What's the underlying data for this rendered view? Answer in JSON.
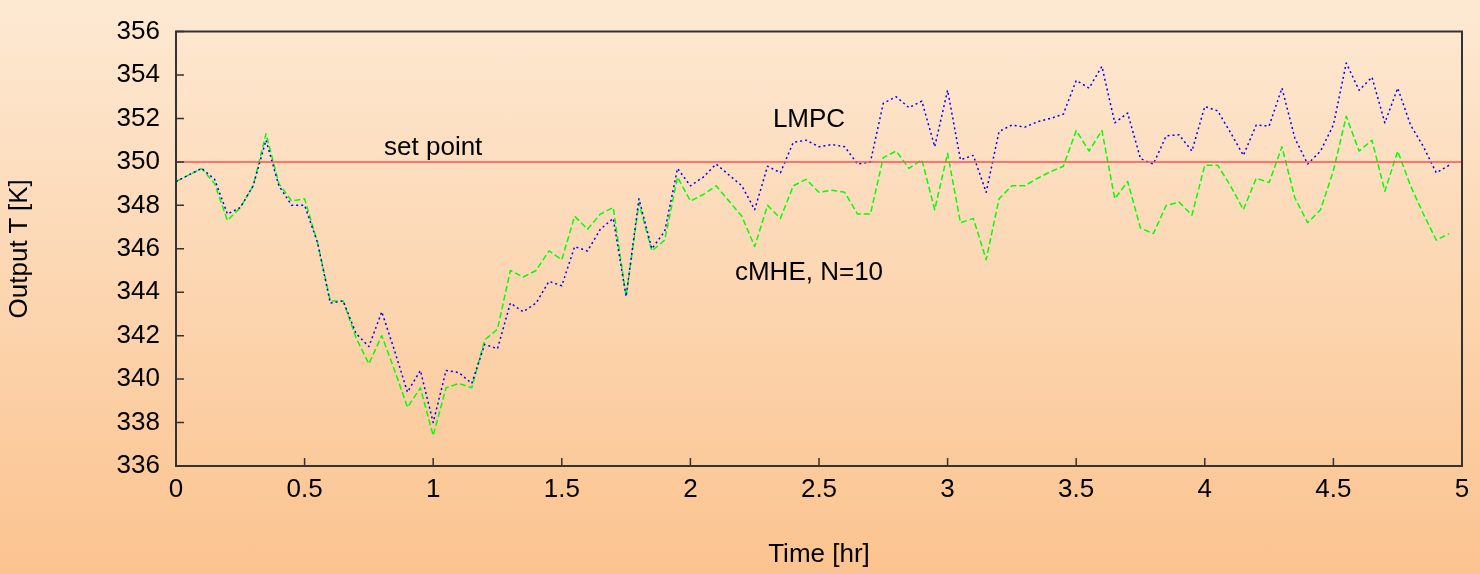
{
  "chart_data": {
    "type": "line",
    "xlabel": "Time [hr]",
    "ylabel": "Output T [K]",
    "x": [
      0,
      0.05,
      0.1,
      0.15,
      0.2,
      0.25,
      0.3,
      0.35,
      0.4,
      0.45,
      0.5,
      0.55,
      0.6,
      0.65,
      0.7,
      0.75,
      0.8,
      0.85,
      0.9,
      0.95,
      1,
      1.05,
      1.1,
      1.15,
      1.2,
      1.25,
      1.3,
      1.35,
      1.4,
      1.45,
      1.5,
      1.55,
      1.6,
      1.65,
      1.7,
      1.75,
      1.8,
      1.85,
      1.9,
      1.95,
      2,
      2.05,
      2.1,
      2.15,
      2.2,
      2.25,
      2.3,
      2.35,
      2.4,
      2.45,
      2.5,
      2.55,
      2.6,
      2.65,
      2.7,
      2.75,
      2.8,
      2.85,
      2.9,
      2.95,
      3,
      3.05,
      3.1,
      3.15,
      3.2,
      3.25,
      3.3,
      3.35,
      3.4,
      3.45,
      3.5,
      3.55,
      3.6,
      3.65,
      3.7,
      3.75,
      3.8,
      3.85,
      3.9,
      3.95,
      4,
      4.05,
      4.1,
      4.15,
      4.2,
      4.25,
      4.3,
      4.35,
      4.4,
      4.45,
      4.5,
      4.55,
      4.6,
      4.65,
      4.7,
      4.75,
      4.8,
      4.85,
      4.9,
      4.95
    ],
    "series": [
      {
        "name": "LMPC",
        "color": "#0000ff",
        "line_style": "dotted",
        "values": [
          349.1,
          349.4,
          349.7,
          349.2,
          347.6,
          347.9,
          348.9,
          351.0,
          348.9,
          348.0,
          348.0,
          346.3,
          343.5,
          343.6,
          342.1,
          341.5,
          343.1,
          341.3,
          339.4,
          340.4,
          338.0,
          340.4,
          340.3,
          339.8,
          341.6,
          341.4,
          343.5,
          343.1,
          343.5,
          344.5,
          344.3,
          346.1,
          345.9,
          346.9,
          347.4,
          343.8,
          348.3,
          346.0,
          346.8,
          349.7,
          348.9,
          349.3,
          349.9,
          349.4,
          348.9,
          347.8,
          349.8,
          349.5,
          350.9,
          351.0,
          350.7,
          350.8,
          350.7,
          349.9,
          350.0,
          352.7,
          353.0,
          352.5,
          352.8,
          350.7,
          353.3,
          350.1,
          350.3,
          348.6,
          351.4,
          351.7,
          351.6,
          351.85,
          352.0,
          352.2,
          353.75,
          353.4,
          354.4,
          351.8,
          352.25,
          350.15,
          349.9,
          351.2,
          351.25,
          350.5,
          352.55,
          352.35,
          351.35,
          350.3,
          351.7,
          351.65,
          353.4,
          351.1,
          349.9,
          350.5,
          351.7,
          354.55,
          353.3,
          353.9,
          351.8,
          353.4,
          351.7,
          350.7,
          349.5,
          349.85
        ]
      },
      {
        "name": "cMHE, N=10",
        "color": "#00ff00",
        "line_style": "dashed",
        "values": [
          349.1,
          349.4,
          349.7,
          349.0,
          347.3,
          347.9,
          348.9,
          351.3,
          349.0,
          348.2,
          348.3,
          346.3,
          343.6,
          343.6,
          341.9,
          340.7,
          342.0,
          340.4,
          338.7,
          339.6,
          337.4,
          339.6,
          339.8,
          339.6,
          341.8,
          342.3,
          345.0,
          344.7,
          345.0,
          345.9,
          345.5,
          347.5,
          346.9,
          347.6,
          347.9,
          343.8,
          348.1,
          345.9,
          346.4,
          349.3,
          348.2,
          348.5,
          348.9,
          348.2,
          347.5,
          346.1,
          348.0,
          347.4,
          348.9,
          349.2,
          348.6,
          348.7,
          348.6,
          347.6,
          347.6,
          350.2,
          350.5,
          349.7,
          350.1,
          347.8,
          350.4,
          347.2,
          347.4,
          345.5,
          348.3,
          348.9,
          348.9,
          349.25,
          349.55,
          349.8,
          351.45,
          350.5,
          351.45,
          348.3,
          349.1,
          346.95,
          346.7,
          348.0,
          348.15,
          347.55,
          349.85,
          349.85,
          348.9,
          347.8,
          349.25,
          349.05,
          350.7,
          348.35,
          347.2,
          347.8,
          349.6,
          352.1,
          350.5,
          351.0,
          348.65,
          350.5,
          348.9,
          347.6,
          346.4,
          346.7
        ]
      }
    ],
    "xlim": [
      0,
      5
    ],
    "xticks": [
      0,
      0.5,
      1,
      1.5,
      2,
      2.5,
      3,
      3.5,
      4,
      4.5,
      5
    ],
    "ylim": [
      336,
      356
    ],
    "yticks": [
      336,
      338,
      340,
      342,
      344,
      346,
      348,
      350,
      352,
      354,
      356
    ],
    "ref_lines": [
      {
        "axis": "y",
        "value": 350,
        "label": "set point",
        "color": "#ff5050"
      }
    ],
    "grid": false,
    "legend": false,
    "marker": "none"
  }
}
